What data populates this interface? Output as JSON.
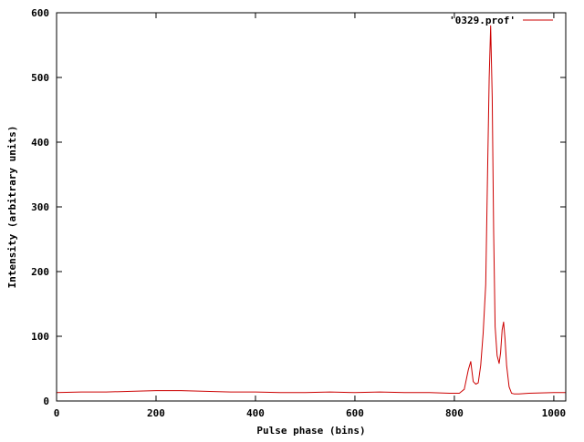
{
  "chart_data": {
    "type": "line",
    "title": "",
    "xlabel": "Pulse phase (bins)",
    "ylabel": "Intensity (arbitrary units)",
    "xlim": [
      0,
      1024
    ],
    "ylim": [
      0,
      600
    ],
    "xticks": [
      0,
      200,
      400,
      600,
      800,
      1000
    ],
    "yticks": [
      0,
      100,
      200,
      300,
      400,
      500,
      600
    ],
    "grid": false,
    "legend_position": "top-right",
    "colors": {
      "series": "#cc0000",
      "axes": "#000000"
    },
    "series": [
      {
        "name": "'0329.prof'",
        "x": [
          0,
          50,
          100,
          150,
          200,
          250,
          300,
          350,
          400,
          450,
          500,
          550,
          600,
          650,
          700,
          750,
          790,
          810,
          820,
          828,
          833,
          838,
          843,
          848,
          853,
          858,
          863,
          867,
          870,
          873,
          876,
          879,
          882,
          886,
          890,
          893,
          896,
          899,
          902,
          905,
          910,
          915,
          920,
          930,
          950,
          1000,
          1024
        ],
        "y": [
          13,
          14,
          14,
          15,
          16,
          16,
          15,
          14,
          14,
          13,
          13,
          14,
          13,
          14,
          13,
          13,
          12,
          12,
          18,
          48,
          61,
          30,
          26,
          28,
          55,
          105,
          180,
          360,
          500,
          580,
          470,
          260,
          115,
          70,
          58,
          75,
          110,
          122,
          95,
          55,
          22,
          12,
          11,
          11,
          12,
          13,
          13
        ]
      }
    ]
  }
}
